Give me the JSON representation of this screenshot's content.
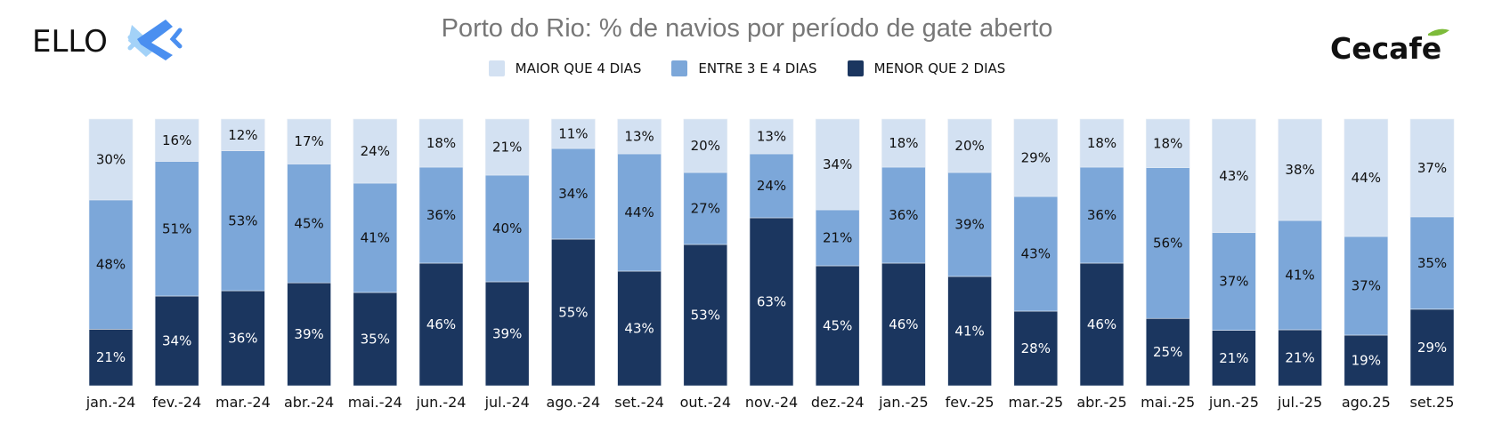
{
  "logos": {
    "left": "ELLO",
    "right": "Cecafe"
  },
  "chart_data": {
    "type": "bar",
    "stacked": true,
    "title": "Porto do Rio: % de navios por período de gate aberto",
    "categories": [
      "jan.-24",
      "fev.-24",
      "mar.-24",
      "abr.-24",
      "mai.-24",
      "jun.-24",
      "jul.-24",
      "ago.-24",
      "set.-24",
      "out.-24",
      "nov.-24",
      "dez.-24",
      "jan.-25",
      "fev.-25",
      "mar.-25",
      "abr.-25",
      "mai.-25",
      "jun.-25",
      "jul.-25",
      "ago.25",
      "set.25"
    ],
    "series": [
      {
        "name": "MENOR QUE 2 DIAS",
        "color": "#1b365f",
        "label_color": "#ffffff",
        "values": [
          21,
          34,
          36,
          39,
          35,
          46,
          39,
          55,
          43,
          53,
          63,
          45,
          46,
          41,
          28,
          46,
          25,
          21,
          21,
          19,
          29
        ]
      },
      {
        "name": "ENTRE 3 E 4 DIAS",
        "color": "#7ca7d9",
        "label_color": "#111111",
        "values": [
          48,
          51,
          53,
          45,
          41,
          36,
          40,
          34,
          44,
          27,
          24,
          21,
          36,
          39,
          43,
          36,
          56,
          37,
          41,
          37,
          35
        ]
      },
      {
        "name": "MAIOR QUE 4 DIAS",
        "color": "#d3e1f2",
        "label_color": "#111111",
        "values": [
          30,
          16,
          12,
          17,
          24,
          18,
          21,
          11,
          13,
          20,
          13,
          34,
          18,
          20,
          29,
          18,
          18,
          43,
          38,
          44,
          37
        ]
      }
    ],
    "legend_order": [
      "MAIOR QUE 4 DIAS",
      "ENTRE 3 E 4 DIAS",
      "MENOR QUE 2 DIAS"
    ],
    "legend_position": "top",
    "value_format": "percent",
    "grid": false,
    "y_axis_visible": false
  }
}
